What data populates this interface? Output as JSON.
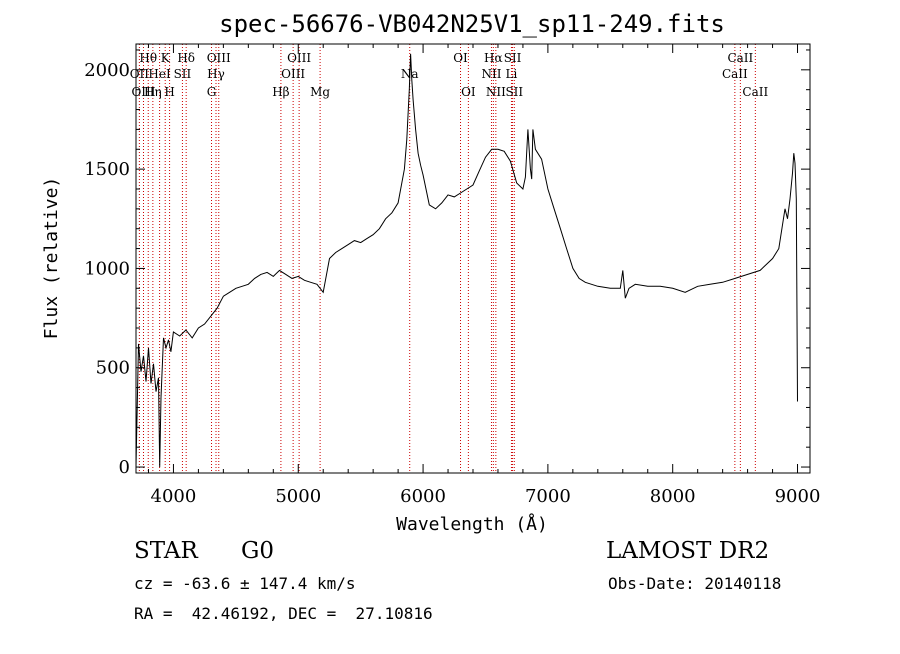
{
  "chart_data": {
    "type": "line",
    "title": "spec-56676-VB042N25V1_sp11-249.fits",
    "xlabel": "Wavelength (Å)",
    "ylabel": "Flux (relative)",
    "xlim": [
      3700,
      9100
    ],
    "ylim": [
      -30,
      2130
    ],
    "x_ticks": [
      4000,
      5000,
      6000,
      7000,
      8000,
      9000
    ],
    "y_ticks": [
      0,
      500,
      1000,
      1500,
      2000
    ],
    "grid": false,
    "colors": {
      "spectrum": "#000000",
      "line_markers": "#cc0000"
    },
    "series": [
      {
        "x": [
          3700,
          3720,
          3740,
          3760,
          3780,
          3800,
          3820,
          3840,
          3860,
          3880,
          3890,
          3900,
          3920,
          3940,
          3960,
          3980,
          4000,
          4050,
          4100,
          4150,
          4200,
          4250,
          4300,
          4350,
          4400,
          4450,
          4500,
          4550,
          4600,
          4650,
          4700,
          4750,
          4800,
          4850,
          4900,
          4950,
          5000,
          5050,
          5100,
          5150,
          5200,
          5250,
          5300,
          5350,
          5400,
          5450,
          5500,
          5550,
          5600,
          5650,
          5700,
          5750,
          5800,
          5850,
          5870,
          5890,
          5900,
          5910,
          5920,
          5940,
          5960,
          5980,
          6000,
          6050,
          6100,
          6150,
          6200,
          6250,
          6300,
          6350,
          6400,
          6450,
          6500,
          6550,
          6600,
          6650,
          6700,
          6750,
          6800,
          6820,
          6840,
          6860,
          6870,
          6880,
          6900,
          6950,
          7000,
          7050,
          7100,
          7150,
          7200,
          7250,
          7300,
          7400,
          7500,
          7580,
          7600,
          7620,
          7650,
          7700,
          7800,
          7900,
          8000,
          8100,
          8200,
          8300,
          8400,
          8500,
          8600,
          8700,
          8800,
          8850,
          8900,
          8920,
          8940,
          8960,
          8970,
          8980,
          8990,
          9000
        ],
        "y": [
          0,
          620,
          480,
          560,
          430,
          600,
          420,
          520,
          380,
          450,
          0,
          350,
          650,
          600,
          640,
          580,
          680,
          660,
          690,
          650,
          700,
          720,
          760,
          800,
          860,
          880,
          900,
          910,
          920,
          950,
          970,
          980,
          960,
          990,
          970,
          950,
          960,
          940,
          930,
          920,
          880,
          1050,
          1080,
          1100,
          1120,
          1140,
          1130,
          1150,
          1170,
          1200,
          1250,
          1280,
          1330,
          1500,
          1650,
          1900,
          2080,
          1950,
          1850,
          1700,
          1580,
          1520,
          1470,
          1320,
          1300,
          1330,
          1370,
          1360,
          1380,
          1400,
          1420,
          1490,
          1560,
          1600,
          1600,
          1590,
          1540,
          1430,
          1400,
          1460,
          1700,
          1500,
          1450,
          1700,
          1600,
          1550,
          1400,
          1300,
          1200,
          1100,
          1000,
          950,
          930,
          910,
          900,
          900,
          990,
          850,
          900,
          920,
          910,
          910,
          900,
          880,
          910,
          920,
          930,
          950,
          970,
          990,
          1050,
          1100,
          1300,
          1250,
          1350,
          1480,
          1580,
          1530,
          1350,
          330
        ]
      }
    ],
    "spectral_lines": [
      {
        "label": "Hθ",
        "x": 3798,
        "row": 1
      },
      {
        "label": "OII",
        "x": 3727,
        "row": 2
      },
      {
        "label": "Hη",
        "x": 3835,
        "row": 3
      },
      {
        "label": "OIII",
        "x": 3760,
        "row": 3
      },
      {
        "label": "K",
        "x": 3934,
        "row": 1
      },
      {
        "label": "HeI",
        "x": 3889,
        "row": 2
      },
      {
        "label": "H",
        "x": 3969,
        "row": 3
      },
      {
        "label": "Hδ",
        "x": 4102,
        "row": 1
      },
      {
        "label": "SII",
        "x": 4072,
        "row": 2
      },
      {
        "label": "OIII",
        "x": 4363,
        "row": 1
      },
      {
        "label": "Hγ",
        "x": 4341,
        "row": 2
      },
      {
        "label": "G",
        "x": 4305,
        "row": 3
      },
      {
        "label": "Hβ",
        "x": 4861,
        "row": 3
      },
      {
        "label": "OIII",
        "x": 5007,
        "row": 1
      },
      {
        "label": "OIII",
        "x": 4959,
        "row": 2
      },
      {
        "label": "Mg",
        "x": 5175,
        "row": 3
      },
      {
        "label": "Na",
        "x": 5893,
        "row": 2
      },
      {
        "label": "OI",
        "x": 6300,
        "row": 1
      },
      {
        "label": "OI",
        "x": 6363,
        "row": 3
      },
      {
        "label": "Hα",
        "x": 6563,
        "row": 1
      },
      {
        "label": "NII",
        "x": 6548,
        "row": 2
      },
      {
        "label": "NII",
        "x": 6583,
        "row": 3
      },
      {
        "label": "SII",
        "x": 6717,
        "row": 1
      },
      {
        "label": "Li",
        "x": 6708,
        "row": 2
      },
      {
        "label": "SII",
        "x": 6731,
        "row": 3
      },
      {
        "label": "CaII",
        "x": 8542,
        "row": 1
      },
      {
        "label": "CaII",
        "x": 8498,
        "row": 2
      },
      {
        "label": "CaII",
        "x": 8662,
        "row": 3
      }
    ]
  },
  "info": {
    "object_class": "STAR",
    "subclass": "G0",
    "survey": "LAMOST DR2",
    "cz": "cz = -63.6 ± 147.4 km/s",
    "obs_date": "Obs-Date: 20140118",
    "coords": "RA =  42.46192, DEC =  27.10816"
  }
}
